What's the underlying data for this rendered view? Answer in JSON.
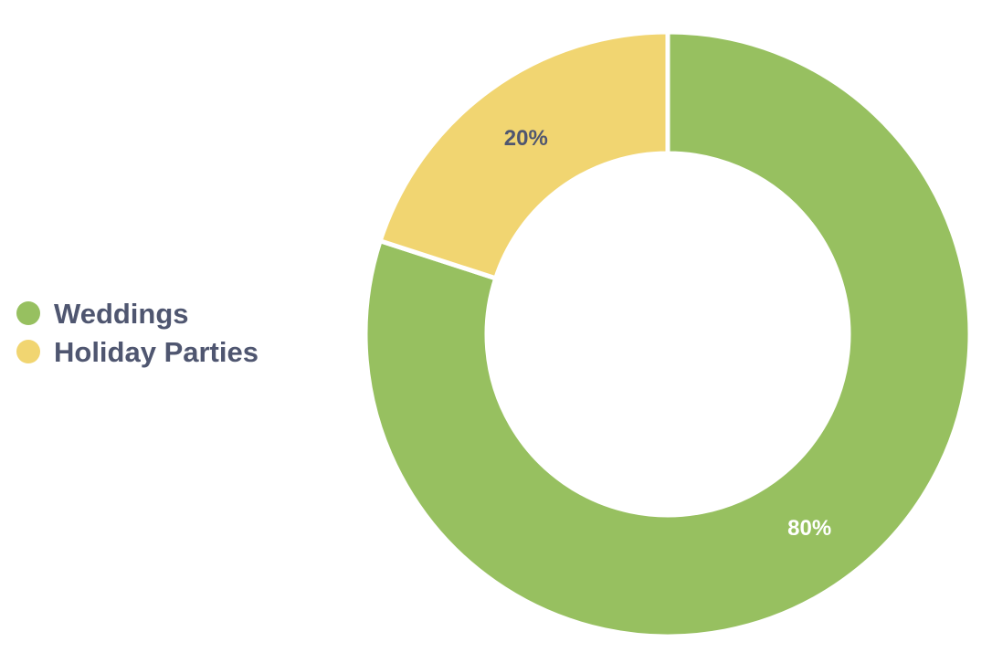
{
  "chart_data": {
    "type": "pie",
    "title": "",
    "categories": [
      "Weddings",
      "Holiday Parties"
    ],
    "values": [
      80,
      20
    ],
    "labels": [
      "80%",
      "20%"
    ],
    "colors": [
      "#97c060",
      "#f1d571"
    ],
    "label_colors": [
      "#ffffff",
      "#4f5670"
    ],
    "legend_position": "left",
    "donut": true
  }
}
